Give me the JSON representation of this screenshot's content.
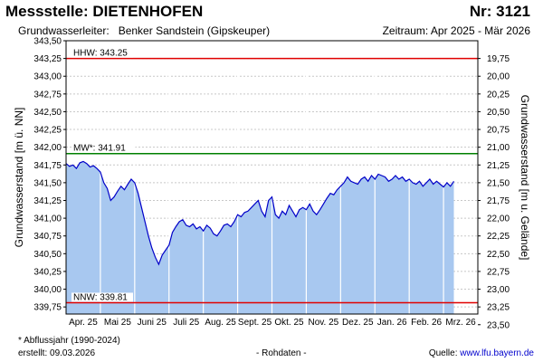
{
  "header": {
    "title": "Messstelle: DIETENHOFEN",
    "number": "Nr: 3121",
    "aquifer": "Grundwasserleiter:   Benker Sandstein (Gipskeuper)",
    "period": "Zeitraum: Apr 2025 - Mär 2026"
  },
  "footer": {
    "footnote": "* Abflussjahr (1990-2024)",
    "created": "erstellt:  09.03.2026",
    "rawdata": "- Rohdaten -",
    "source_prefix": "Quelle: ",
    "source_link": "www.lfu.bayern.de"
  },
  "chart_data": {
    "type": "area",
    "ylabel_left": "Grundwasserstand [m ü. NN]",
    "ylabel_right": "Grundwasserstand [m u. Gelände]",
    "ylim": [
      339.65,
      343.5
    ],
    "y_ticks": [
      "343,50",
      "343,25",
      "343,00",
      "342,75",
      "342,50",
      "342,25",
      "342,00",
      "341,75",
      "341,50",
      "341,25",
      "341,00",
      "340,75",
      "340,50",
      "340,25",
      "340,00",
      "339,75"
    ],
    "y_right_ticks": [
      "19,75",
      "20,00",
      "20,25",
      "20,50",
      "20,75",
      "21,00",
      "21,25",
      "21,50",
      "21,75",
      "22,00",
      "22,25",
      "22,50",
      "22,75",
      "23,00",
      "23,25",
      "23,50"
    ],
    "ground_level_offset": 363,
    "x_range_months": [
      0,
      12
    ],
    "month_labels": [
      "Apr. 25",
      "Mai 25",
      "Juni 25",
      "Juli 25",
      "Aug. 25",
      "Sept. 25",
      "Okt. 25",
      "Nov. 25",
      "Dez. 25",
      "Jan. 26",
      "Feb. 26",
      "Mrz. 26"
    ],
    "reference_lines": [
      {
        "label": "HHW: 343.25",
        "value": 343.25,
        "color": "#e00000"
      },
      {
        "label": "MW*: 341.91",
        "value": 341.91,
        "color": "#008000"
      },
      {
        "label": "NNW: 339.81",
        "value": 339.81,
        "color": "#e00000"
      }
    ],
    "fill_color": "#a8c8f0",
    "line_color": "#0000c8",
    "series": [
      {
        "x": [
          0.0,
          0.1,
          0.2,
          0.3,
          0.4,
          0.5,
          0.6,
          0.7,
          0.8,
          0.9,
          1.0,
          1.1,
          1.2,
          1.3,
          1.4,
          1.5,
          1.6,
          1.7,
          1.8,
          1.9,
          2.0,
          2.1,
          2.2,
          2.3,
          2.4,
          2.5,
          2.6,
          2.7,
          2.8,
          2.9,
          3.0,
          3.1,
          3.2,
          3.3,
          3.4,
          3.5,
          3.6,
          3.7,
          3.8,
          3.9,
          4.0,
          4.1,
          4.2,
          4.3,
          4.4,
          4.5,
          4.6,
          4.7,
          4.8,
          4.9,
          5.0,
          5.1,
          5.2,
          5.3,
          5.4,
          5.5,
          5.6,
          5.7,
          5.8,
          5.9,
          6.0,
          6.1,
          6.2,
          6.3,
          6.4,
          6.5,
          6.6,
          6.7,
          6.8,
          6.9,
          7.0,
          7.1,
          7.2,
          7.3,
          7.4,
          7.5,
          7.6,
          7.7,
          7.8,
          7.9,
          8.0,
          8.1,
          8.2,
          8.3,
          8.4,
          8.5,
          8.6,
          8.7,
          8.8,
          8.9,
          9.0,
          9.1,
          9.2,
          9.3,
          9.4,
          9.5,
          9.6,
          9.7,
          9.8,
          9.9,
          10.0,
          10.1,
          10.2,
          10.3,
          10.4,
          10.5,
          10.6,
          10.7,
          10.8,
          10.9,
          11.0,
          11.1,
          11.2,
          11.3
        ],
        "values": [
          341.77,
          341.73,
          341.75,
          341.7,
          341.78,
          341.8,
          341.77,
          341.72,
          341.74,
          341.7,
          341.65,
          341.5,
          341.42,
          341.25,
          341.3,
          341.38,
          341.45,
          341.4,
          341.48,
          341.55,
          341.5,
          341.35,
          341.15,
          340.95,
          340.75,
          340.58,
          340.45,
          340.35,
          340.48,
          340.55,
          340.62,
          340.8,
          340.88,
          340.95,
          340.98,
          340.9,
          340.88,
          340.92,
          340.85,
          340.88,
          340.82,
          340.9,
          340.86,
          340.78,
          340.75,
          340.82,
          340.9,
          340.92,
          340.88,
          340.95,
          341.05,
          341.02,
          341.08,
          341.1,
          341.15,
          341.2,
          341.25,
          341.1,
          341.02,
          341.25,
          341.3,
          341.05,
          341.0,
          341.1,
          341.05,
          341.18,
          341.1,
          341.02,
          341.12,
          341.15,
          341.12,
          341.2,
          341.1,
          341.05,
          341.12,
          341.2,
          341.28,
          341.35,
          341.33,
          341.4,
          341.45,
          341.5,
          341.58,
          341.52,
          341.5,
          341.48,
          341.55,
          341.58,
          341.52,
          341.6,
          341.55,
          341.62,
          341.6,
          341.58,
          341.52,
          341.55,
          341.6,
          341.55,
          341.58,
          341.52,
          341.55,
          341.5,
          341.48,
          341.52,
          341.45,
          341.5,
          341.55,
          341.48,
          341.52,
          341.48,
          341.44,
          341.5,
          341.45,
          341.52
        ]
      }
    ]
  }
}
